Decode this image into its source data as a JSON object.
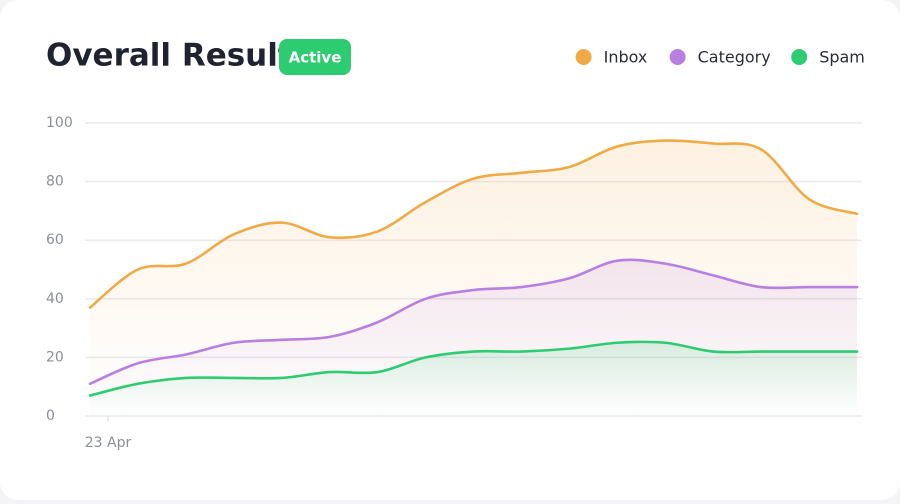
{
  "chart_data": {
    "type": "line",
    "title": "Overall Result",
    "badge": "Active",
    "categories": [
      "23 Apr",
      null,
      null,
      null,
      null,
      null,
      null,
      null,
      null,
      null,
      null,
      null,
      null,
      null,
      null,
      null,
      null
    ],
    "series": [
      {
        "name": "Inbox",
        "color": "#f0aa45",
        "values": [
          37,
          50,
          52,
          62,
          66,
          61,
          63,
          73,
          81,
          83,
          85,
          92,
          94,
          93,
          91,
          74,
          69
        ]
      },
      {
        "name": "Category",
        "color": "#b97fe0",
        "values": [
          11,
          18,
          21,
          25,
          26,
          27,
          32,
          40,
          43,
          44,
          47,
          53,
          52,
          48,
          44,
          44,
          44
        ]
      },
      {
        "name": "Spam",
        "color": "#2ecc71",
        "values": [
          7,
          11,
          13,
          13,
          13,
          15,
          15,
          20,
          22,
          22,
          23,
          25,
          25,
          22,
          22,
          22,
          22
        ]
      }
    ],
    "ylim": [
      0,
      100
    ],
    "yticks": [
      0,
      20,
      40,
      60,
      80,
      100
    ],
    "grid": true,
    "legend": "top-right"
  }
}
